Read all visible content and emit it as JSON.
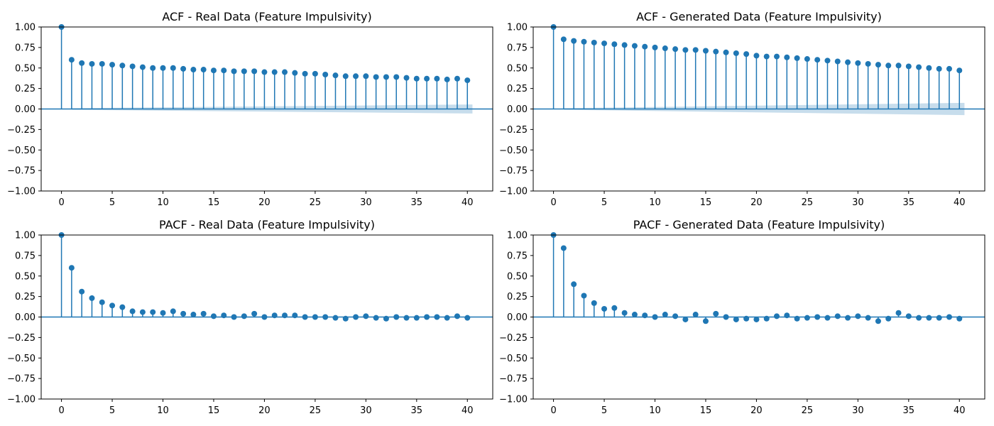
{
  "colors": {
    "stem": "#1f77b4",
    "confidence_band": "#1f77b4"
  },
  "chart_data": [
    {
      "type": "stem",
      "title": "ACF - Real Data (Feature Impulsivity)",
      "xlabel": "",
      "ylabel": "",
      "xlim": [
        -2,
        42.5
      ],
      "ylim": [
        -1.0,
        1.0
      ],
      "xticks": [
        0,
        5,
        10,
        15,
        20,
        25,
        30,
        35,
        40
      ],
      "yticks": [
        "1.00",
        "0.75",
        "0.50",
        "0.25",
        "0.00",
        "−0.25",
        "−0.50",
        "−0.75",
        "−1.00"
      ],
      "grid": false,
      "confidence_band": {
        "x_start": 1,
        "x_end": 40.5,
        "half_width_start": 0.01,
        "half_width_end": 0.055
      },
      "lags": [
        0,
        1,
        2,
        3,
        4,
        5,
        6,
        7,
        8,
        9,
        10,
        11,
        12,
        13,
        14,
        15,
        16,
        17,
        18,
        19,
        20,
        21,
        22,
        23,
        24,
        25,
        26,
        27,
        28,
        29,
        30,
        31,
        32,
        33,
        34,
        35,
        36,
        37,
        38,
        39,
        40
      ],
      "values": [
        1.0,
        0.6,
        0.56,
        0.55,
        0.55,
        0.54,
        0.53,
        0.52,
        0.51,
        0.5,
        0.5,
        0.5,
        0.49,
        0.48,
        0.48,
        0.47,
        0.47,
        0.46,
        0.46,
        0.46,
        0.45,
        0.45,
        0.45,
        0.44,
        0.43,
        0.43,
        0.42,
        0.41,
        0.4,
        0.4,
        0.4,
        0.39,
        0.39,
        0.39,
        0.38,
        0.37,
        0.37,
        0.37,
        0.36,
        0.37,
        0.35
      ]
    },
    {
      "type": "stem",
      "title": "ACF - Generated Data (Feature Impulsivity)",
      "xlabel": "",
      "ylabel": "",
      "xlim": [
        -2,
        42.5
      ],
      "ylim": [
        -1.0,
        1.0
      ],
      "xticks": [
        0,
        5,
        10,
        15,
        20,
        25,
        30,
        35,
        40
      ],
      "yticks": [
        "1.00",
        "0.75",
        "0.50",
        "0.25",
        "0.00",
        "−0.25",
        "−0.50",
        "−0.75",
        "−1.00"
      ],
      "grid": false,
      "confidence_band": {
        "x_start": 1,
        "x_end": 40.5,
        "half_width_start": 0.01,
        "half_width_end": 0.075
      },
      "lags": [
        0,
        1,
        2,
        3,
        4,
        5,
        6,
        7,
        8,
        9,
        10,
        11,
        12,
        13,
        14,
        15,
        16,
        17,
        18,
        19,
        20,
        21,
        22,
        23,
        24,
        25,
        26,
        27,
        28,
        29,
        30,
        31,
        32,
        33,
        34,
        35,
        36,
        37,
        38,
        39,
        40
      ],
      "values": [
        1.0,
        0.85,
        0.83,
        0.82,
        0.81,
        0.8,
        0.79,
        0.78,
        0.77,
        0.76,
        0.75,
        0.74,
        0.73,
        0.72,
        0.72,
        0.71,
        0.7,
        0.69,
        0.68,
        0.67,
        0.65,
        0.64,
        0.64,
        0.63,
        0.62,
        0.61,
        0.6,
        0.59,
        0.58,
        0.57,
        0.56,
        0.55,
        0.54,
        0.53,
        0.53,
        0.52,
        0.51,
        0.5,
        0.49,
        0.49,
        0.47
      ]
    },
    {
      "type": "stem",
      "title": "PACF - Real Data (Feature Impulsivity)",
      "xlabel": "",
      "ylabel": "",
      "xlim": [
        -2,
        42.5
      ],
      "ylim": [
        -1.0,
        1.0
      ],
      "xticks": [
        0,
        5,
        10,
        15,
        20,
        25,
        30,
        35,
        40
      ],
      "yticks": [
        "1.00",
        "0.75",
        "0.50",
        "0.25",
        "0.00",
        "−0.25",
        "−0.50",
        "−0.75",
        "−1.00"
      ],
      "grid": false,
      "lags": [
        0,
        1,
        2,
        3,
        4,
        5,
        6,
        7,
        8,
        9,
        10,
        11,
        12,
        13,
        14,
        15,
        16,
        17,
        18,
        19,
        20,
        21,
        22,
        23,
        24,
        25,
        26,
        27,
        28,
        29,
        30,
        31,
        32,
        33,
        34,
        35,
        36,
        37,
        38,
        39,
        40
      ],
      "values": [
        1.0,
        0.6,
        0.31,
        0.23,
        0.18,
        0.14,
        0.12,
        0.07,
        0.06,
        0.06,
        0.05,
        0.07,
        0.04,
        0.03,
        0.04,
        0.01,
        0.02,
        0.0,
        0.01,
        0.04,
        0.0,
        0.02,
        0.02,
        0.02,
        0.0,
        0.0,
        0.0,
        -0.01,
        -0.02,
        0.0,
        0.01,
        -0.01,
        -0.02,
        0.0,
        -0.01,
        -0.01,
        0.0,
        0.0,
        -0.01,
        0.01,
        -0.01
      ]
    },
    {
      "type": "stem",
      "title": "PACF - Generated Data (Feature Impulsivity)",
      "xlabel": "",
      "ylabel": "",
      "xlim": [
        -2,
        42.5
      ],
      "ylim": [
        -1.0,
        1.0
      ],
      "xticks": [
        0,
        5,
        10,
        15,
        20,
        25,
        30,
        35,
        40
      ],
      "yticks": [
        "1.00",
        "0.75",
        "0.50",
        "0.25",
        "0.00",
        "−0.25",
        "−0.50",
        "−0.75",
        "−1.00"
      ],
      "grid": false,
      "lags": [
        0,
        1,
        2,
        3,
        4,
        5,
        6,
        7,
        8,
        9,
        10,
        11,
        12,
        13,
        14,
        15,
        16,
        17,
        18,
        19,
        20,
        21,
        22,
        23,
        24,
        25,
        26,
        27,
        28,
        29,
        30,
        31,
        32,
        33,
        34,
        35,
        36,
        37,
        38,
        39,
        40
      ],
      "values": [
        1.0,
        0.84,
        0.4,
        0.26,
        0.17,
        0.1,
        0.11,
        0.05,
        0.03,
        0.02,
        0.0,
        0.03,
        0.01,
        -0.03,
        0.03,
        -0.05,
        0.04,
        0.0,
        -0.03,
        -0.02,
        -0.03,
        -0.02,
        0.01,
        0.02,
        -0.02,
        -0.01,
        0.0,
        -0.01,
        0.01,
        -0.01,
        0.01,
        -0.01,
        -0.05,
        -0.02,
        0.05,
        0.01,
        -0.01,
        -0.01,
        -0.01,
        0.0,
        -0.02
      ]
    }
  ]
}
